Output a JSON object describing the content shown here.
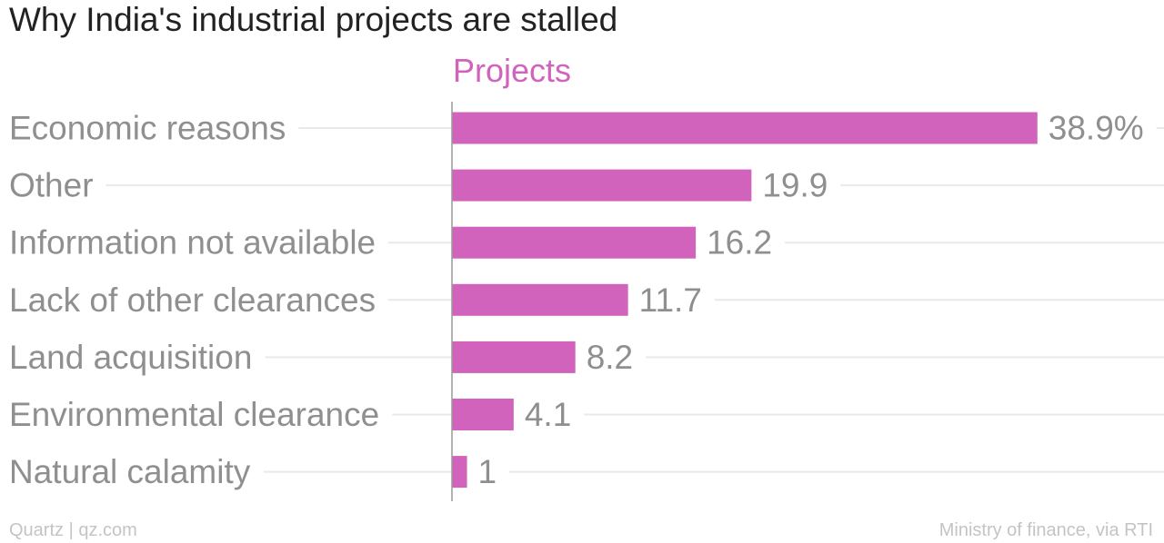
{
  "chart_data": {
    "type": "bar",
    "orientation": "horizontal",
    "title": "Why India's industrial projects are stalled",
    "categories": [
      "Economic reasons",
      "Other",
      "Information not available",
      "Lack of other clearances",
      "Land acquisition",
      "Environmental clearance",
      "Natural calamity"
    ],
    "series": [
      {
        "name": "Projects",
        "values": [
          38.9,
          19.9,
          16.2,
          11.7,
          8.2,
          4.1,
          1
        ],
        "value_labels": [
          "38.9%",
          "19.9",
          "16.2",
          "11.7",
          "8.2",
          "4.1",
          "1"
        ]
      }
    ],
    "xlim": [
      0,
      40
    ],
    "grid": true,
    "bar_color": "#d163bc"
  },
  "footer": {
    "credit": "Quartz | qz.com",
    "source": "Ministry of finance, via RTI"
  }
}
